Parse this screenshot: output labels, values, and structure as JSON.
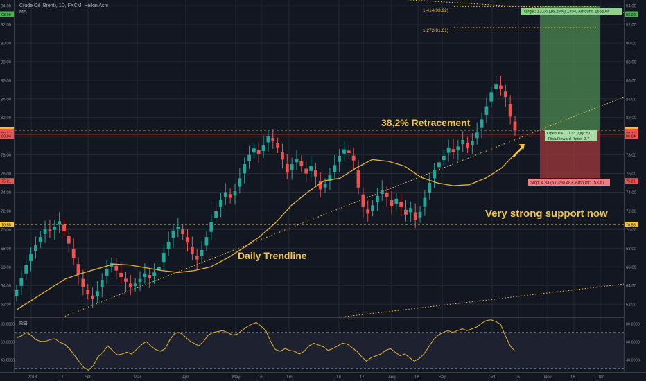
{
  "legend": {
    "symbol": "Crude Oil (Brent), 1D, FXCM, Heikin Ashi",
    "ma": "MA",
    "rsi": "RSI"
  },
  "colors": {
    "bg": "#131722",
    "grid": "#262a35",
    "up": "#26a69a",
    "down": "#ef5350",
    "ma": "#e8b530",
    "annotation": "#f5c542",
    "rsi": "#e8b530",
    "target_zone": "#4e8a50",
    "stop_zone": "#a03a3a",
    "axis_text": "#8c8f99"
  },
  "annotations": {
    "retracement": "38,2% Retracement",
    "support": "Very strong support now",
    "trendline": "Daily Trendline",
    "fib_1414": "1.414(93.92)",
    "fib_1272": "1.272(91.61)",
    "target": "Target: 13.04 (16.29%) 1304, Amount: 1665.04",
    "open_pl": "Open P&L: 0.33, Qty: 51",
    "risk_reward": "Risk/Reward Ratio: 2.7",
    "stop": "Stop: 4.83 (6.03%) 483, Amount: 753.67"
  },
  "chart_data": {
    "type": "candlestick",
    "title": "Crude Oil (Brent), 1D, FXCM, Heikin Ashi",
    "price_axis": {
      "ticks": [
        "94.00",
        "92.00",
        "90.00",
        "88.00",
        "86.00",
        "84.00",
        "82.00",
        "80.00",
        "78.00",
        "76.00",
        "74.00",
        "72.00",
        "70.00",
        "68.00",
        "66.00",
        "64.00",
        "62.00"
      ],
      "range": [
        60.6,
        94.6
      ]
    },
    "price_labels": [
      {
        "value": 93.08,
        "text": "93.08",
        "color": "#4caf50"
      },
      {
        "value": 80.65,
        "text": "80.65",
        "color": "#f5c542"
      },
      {
        "value": 80.51,
        "text": "80.51",
        "color": "#ef5350"
      },
      {
        "value": 80.37,
        "text": "80.37",
        "color": "#ef5350"
      },
      {
        "value": 80.04,
        "text": "80.04",
        "color": "#ef5350"
      },
      {
        "value": 75.21,
        "text": "75.21",
        "color": "#ef5350"
      },
      {
        "value": 70.55,
        "text": "70.55",
        "color": "#f5c542"
      }
    ],
    "time_axis": [
      "2018",
      "17",
      "Feb",
      "Mar",
      "Apr",
      "May",
      "16",
      "Jun",
      "Jul",
      "17",
      "Aug",
      "16",
      "Sep",
      "Oct",
      "16",
      "Nov",
      "16",
      "Dec"
    ],
    "horizontal_levels": [
      80.65,
      70.55
    ],
    "fib_levels": [
      93.92,
      91.61
    ],
    "ohlc_close_path": [
      63.5,
      64.8,
      66.2,
      67.4,
      68.3,
      69.2,
      70.1,
      69.8,
      70.3,
      70.9,
      69.8,
      68.5,
      66.9,
      65.2,
      63.8,
      63.1,
      62.6,
      63.4,
      64.6,
      65.8,
      66.4,
      65.6,
      64.9,
      64.4,
      63.8,
      64.2,
      64.7,
      65.3,
      64.8,
      65.4,
      66.0,
      67.5,
      68.7,
      69.9,
      70.3,
      69.5,
      68.6,
      67.4,
      66.8,
      67.8,
      69.2,
      70.8,
      72.0,
      73.2,
      74.0,
      73.4,
      74.1,
      75.5,
      77.0,
      78.0,
      78.7,
      78.1,
      79.0,
      80.0,
      79.5,
      78.8,
      77.5,
      76.1,
      77.0,
      77.6,
      76.8,
      76.0,
      76.8,
      75.7,
      74.3,
      74.9,
      75.8,
      76.9,
      77.9,
      78.6,
      78.2,
      77.4,
      74.5,
      72.4,
      71.7,
      72.6,
      73.6,
      74.2,
      73.5,
      72.5,
      73.3,
      72.4,
      71.6,
      72.3,
      71.0,
      71.9,
      73.4,
      75.0,
      76.4,
      77.2,
      77.9,
      78.8,
      78.3,
      78.9,
      79.6,
      78.8,
      79.5,
      80.4,
      81.8,
      83.2,
      84.7,
      85.6,
      85.1,
      84.2,
      82.1,
      80.6
    ],
    "ma_series": [
      61.4,
      62.5,
      63.6,
      64.7,
      65.3,
      65.8,
      66.3,
      66.2,
      65.9,
      65.6,
      65.4,
      65.6,
      66.0,
      66.9,
      68.0,
      69.2,
      70.7,
      72.6,
      74.0,
      75.2,
      75.5,
      76.6,
      77.5,
      77.3,
      76.8,
      75.6,
      75.0,
      74.7,
      74.8,
      75.5,
      76.6,
      78.4
    ],
    "rsi": {
      "levels": [
        70,
        30
      ],
      "ticks": [
        "80.0000",
        "60.0000",
        "40.0000"
      ],
      "range": [
        26,
        86
      ],
      "values": [
        64,
        66,
        70,
        67,
        62,
        60,
        60,
        62,
        63,
        59,
        57,
        52,
        45,
        38,
        31,
        28,
        33,
        43,
        48,
        55,
        50,
        45,
        46,
        48,
        46,
        51,
        56,
        60,
        55,
        51,
        49,
        52,
        62,
        69,
        70,
        66,
        61,
        58,
        55,
        60,
        67,
        70,
        71,
        72,
        70,
        67,
        68,
        72,
        76,
        79,
        81,
        77,
        72,
        60,
        51,
        49,
        52,
        50,
        49,
        46,
        49,
        55,
        58,
        56,
        54,
        50,
        52,
        55,
        58,
        57,
        53,
        49,
        43,
        38,
        42,
        44,
        46,
        50,
        52,
        48,
        44,
        46,
        42,
        38,
        41,
        46,
        54,
        62,
        67,
        70,
        72,
        70,
        72,
        74,
        72,
        74,
        76,
        80,
        83,
        84,
        82,
        79,
        66,
        55,
        49
      ]
    }
  }
}
